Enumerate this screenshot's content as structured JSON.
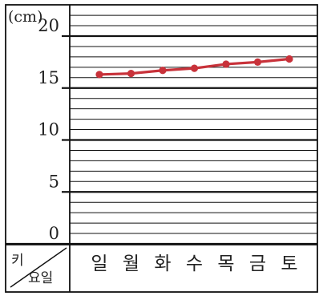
{
  "chart_data": {
    "type": "line",
    "unit_label": "(cm)",
    "corner_label_top": "키",
    "corner_label_bottom": "요일",
    "categories": [
      "일",
      "월",
      "화",
      "수",
      "목",
      "금",
      "토"
    ],
    "values": [
      16.3,
      16.4,
      16.7,
      16.9,
      17.3,
      17.5,
      17.8
    ],
    "ylim": [
      0,
      20
    ],
    "yticks": [
      "0",
      "5",
      "10",
      "15",
      "20"
    ],
    "grid": "on",
    "minor_step": 1,
    "major_step": 5,
    "line_color": "#c8323a",
    "point_color": "#c8323a"
  }
}
